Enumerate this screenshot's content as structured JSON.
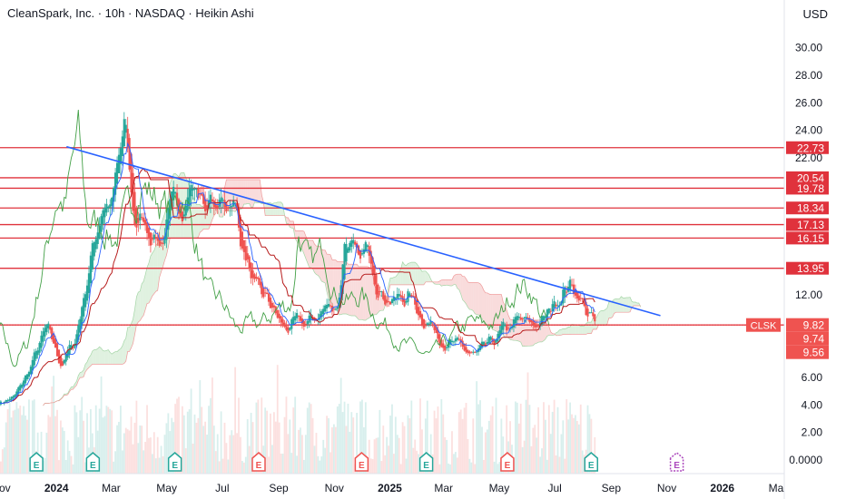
{
  "header": {
    "title": "CleanSpark, Inc. · 10h · NASDAQ · Heikin Ashi",
    "currency": "USD"
  },
  "colors": {
    "up": "#26a69a",
    "down": "#ef5350",
    "level_line": "#e0323c",
    "trendline": "#2962ff",
    "tenkan": "#2962ff",
    "kijun": "#b71c1c",
    "chikou": "#43a047",
    "cloud_bull": "#a5d6a7",
    "cloud_bear": "#ef9a9a",
    "earnings_past": "#26a69a",
    "earnings_neg": "#ef5350",
    "earnings_future": "#ab47bc"
  },
  "chart_data": {
    "type": "candlestick",
    "symbol": "CLSK",
    "y_ticks": [
      "30.00",
      "28.00",
      "26.00",
      "24.00",
      "22.00",
      "12.00",
      "6.00",
      "4.00",
      "2.00",
      "0.0000"
    ],
    "ylim": [
      -1,
      31.5
    ],
    "x_ticks": [
      "Nov",
      "2024",
      "Mar",
      "May",
      "Jul",
      "Sep",
      "Nov",
      "2025",
      "Mar",
      "May",
      "Jul",
      "Sep",
      "Nov",
      "2026",
      "Ma"
    ],
    "bold_x_ticks": [
      "2024",
      "2025",
      "2026"
    ],
    "horizontal_levels": [
      22.73,
      20.54,
      19.78,
      18.34,
      17.13,
      16.15,
      13.95,
      9.82
    ],
    "level_labels": [
      "22.73",
      "20.54",
      "19.78",
      "18.34",
      "17.13",
      "16.15",
      "13.95"
    ],
    "last_price": {
      "label": "CLSK",
      "value": "9.82"
    },
    "extra_price_labels": [
      "9.74",
      "9.56"
    ],
    "trendline": {
      "start": [
        "2024-01-12",
        22.8
      ],
      "end": [
        "2025-10-25",
        10.5
      ]
    },
    "price_path": [
      [
        "2023-10-28",
        4.2
      ],
      [
        "2023-11-15",
        4.5
      ],
      [
        "2023-12-01",
        6.5
      ],
      [
        "2023-12-20",
        9.5
      ],
      [
        "2024-01-05",
        7.0
      ],
      [
        "2024-01-20",
        8.5
      ],
      [
        "2024-02-05",
        14.0
      ],
      [
        "2024-02-20",
        19.0
      ],
      [
        "2024-03-01",
        18.5
      ],
      [
        "2024-03-15",
        24.0
      ],
      [
        "2024-03-25",
        17.5
      ],
      [
        "2024-04-10",
        17.0
      ],
      [
        "2024-04-25",
        16.0
      ],
      [
        "2024-05-10",
        18.5
      ],
      [
        "2024-05-25",
        20.0
      ],
      [
        "2024-06-10",
        19.0
      ],
      [
        "2024-06-25",
        18.0
      ],
      [
        "2024-07-10",
        19.5
      ],
      [
        "2024-07-20",
        16.5
      ],
      [
        "2024-08-05",
        12.0
      ],
      [
        "2024-08-20",
        11.5
      ],
      [
        "2024-09-05",
        9.5
      ],
      [
        "2024-09-20",
        9.8
      ],
      [
        "2024-10-05",
        10.0
      ],
      [
        "2024-10-20",
        11.0
      ],
      [
        "2024-11-05",
        11.5
      ],
      [
        "2024-11-12",
        16.5
      ],
      [
        "2024-11-25",
        14.0
      ],
      [
        "2024-12-10",
        15.5
      ],
      [
        "2024-12-20",
        12.5
      ],
      [
        "2025-01-05",
        11.5
      ],
      [
        "2025-01-20",
        12.0
      ],
      [
        "2025-02-05",
        10.5
      ],
      [
        "2025-02-20",
        9.5
      ],
      [
        "2025-03-05",
        8.5
      ],
      [
        "2025-03-20",
        8.0
      ],
      [
        "2025-04-05",
        7.5
      ],
      [
        "2025-04-20",
        8.3
      ],
      [
        "2025-05-05",
        9.3
      ],
      [
        "2025-05-20",
        10.0
      ],
      [
        "2025-06-05",
        9.8
      ],
      [
        "2025-06-20",
        10.2
      ],
      [
        "2025-07-01",
        11.8
      ],
      [
        "2025-07-15",
        12.8
      ],
      [
        "2025-07-25",
        12.3
      ],
      [
        "2025-08-05",
        10.6
      ],
      [
        "2025-08-14",
        9.82
      ]
    ],
    "earnings": [
      {
        "date": "2023-12-10",
        "kind": "past"
      },
      {
        "date": "2024-02-10",
        "kind": "past"
      },
      {
        "date": "2024-05-10",
        "kind": "past"
      },
      {
        "date": "2024-08-10",
        "kind": "negative"
      },
      {
        "date": "2024-12-01",
        "kind": "negative"
      },
      {
        "date": "2025-02-10",
        "kind": "past"
      },
      {
        "date": "2025-05-10",
        "kind": "negative"
      },
      {
        "date": "2025-08-10",
        "kind": "past"
      },
      {
        "date": "2025-11-12",
        "kind": "future"
      }
    ],
    "earnings_label": "E"
  }
}
